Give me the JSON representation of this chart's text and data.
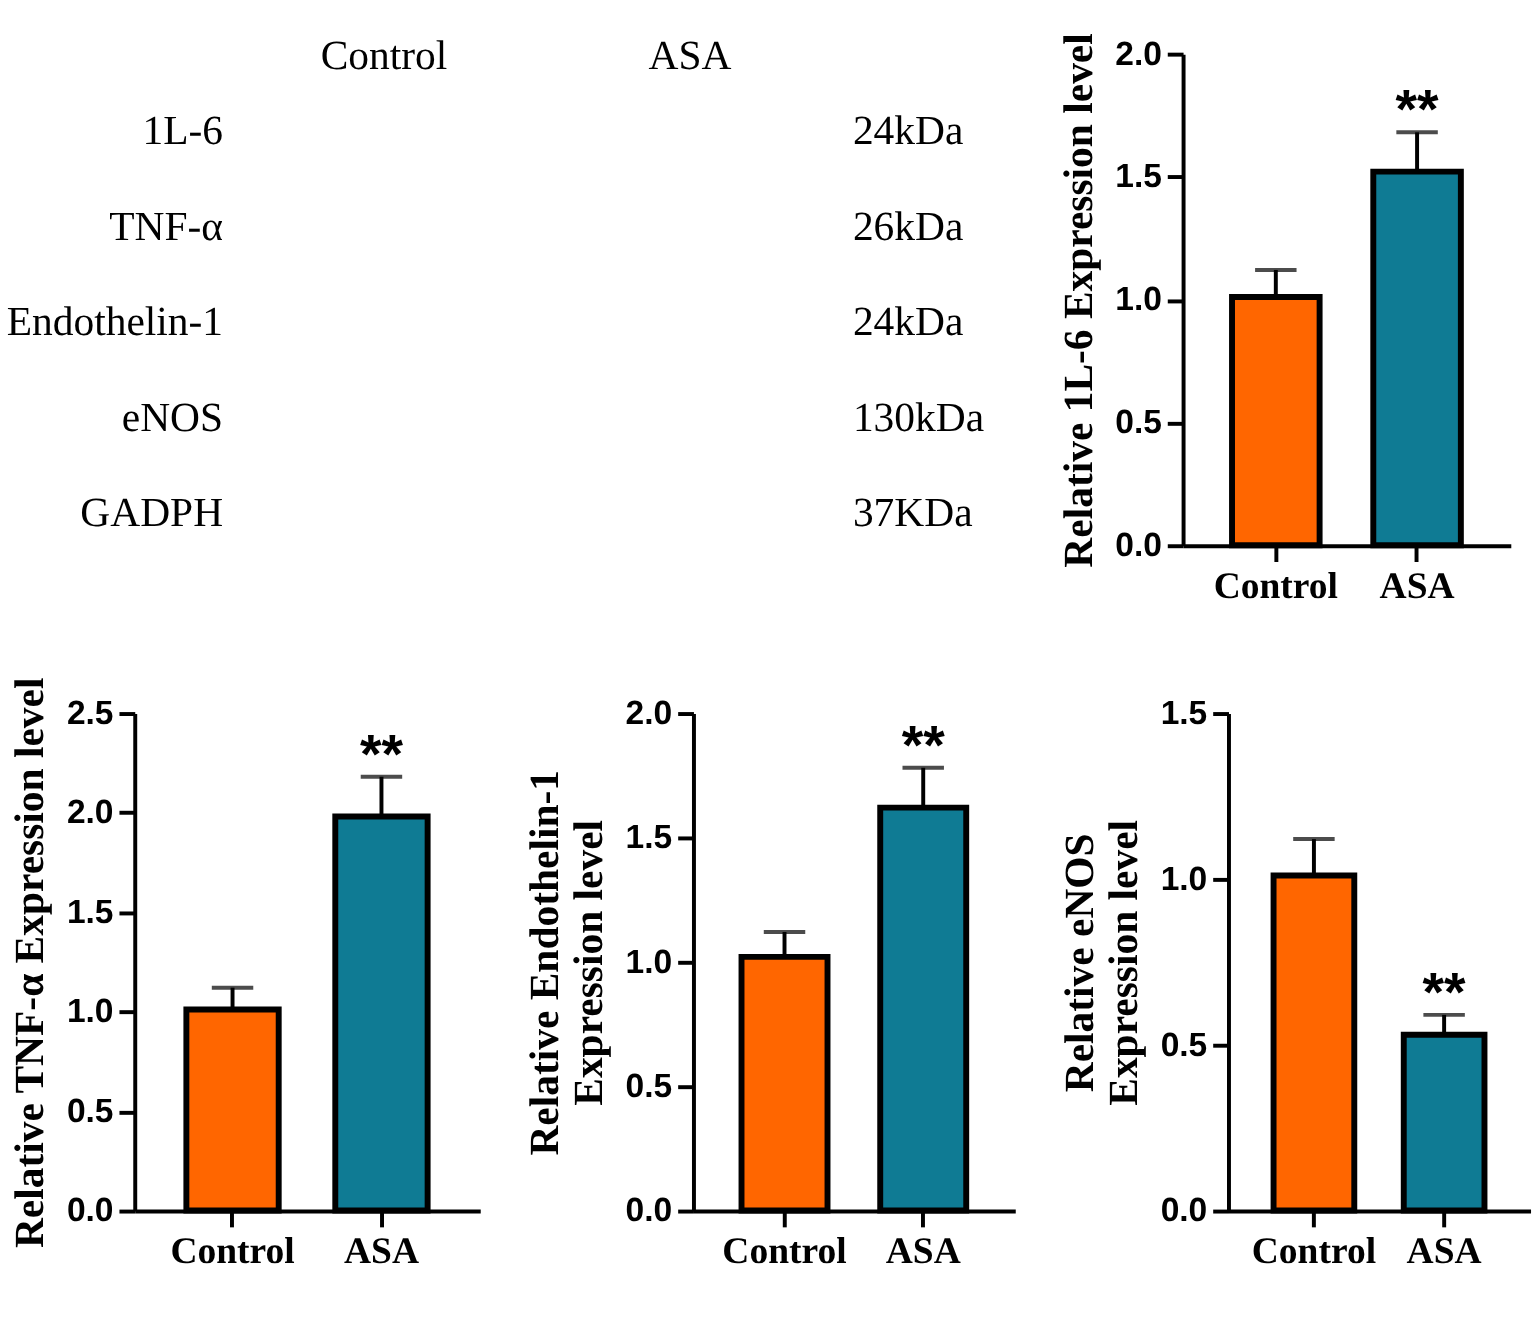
{
  "chart_data": [
    {
      "type": "other",
      "categories": [
        "Control",
        "ASA"
      ],
      "y_categories": [
        "1L-6",
        "TNF-α",
        "Endothelin-1",
        "eNOS",
        "GADPH"
      ],
      "y2_categories": [
        "24kDa",
        "26kDa",
        "24kDa",
        "130kDa",
        "37KDa"
      ]
    },
    {
      "type": "bar",
      "ylabel": "Relative 1L-6 Expression level",
      "categories": [
        "Control",
        "ASA"
      ],
      "values": [
        1.01,
        1.52
      ],
      "colors": [
        "#ff6600",
        "#0f7b94"
      ],
      "errors": [
        [
          1.01,
          1.12
        ],
        [
          1.52,
          1.68
        ]
      ],
      "ylim": [
        0,
        2
      ],
      "yticks": [
        {
          "value": 0,
          "label": "0.0"
        },
        0.5,
        {
          "value": 1,
          "label": "1.0"
        },
        1.5,
        {
          "value": 2,
          "label": "2.0"
        }
      ],
      "annotations": [
        {
          "text": "**",
          "x": "ASA",
          "y": 1.68
        }
      ]
    },
    {
      "type": "bar",
      "ylabel": "Relative TNF-α Expression level",
      "categories": [
        "Control",
        "ASA"
      ],
      "values": [
        1.01,
        1.98
      ],
      "colors": [
        "#ff6600",
        "#0f7b94"
      ],
      "errors": [
        [
          1.01,
          1.12
        ],
        [
          1.98,
          2.18
        ]
      ],
      "ylim": [
        0,
        2.5
      ],
      "yticks": [
        {
          "value": 0,
          "label": "0.0"
        },
        0.5,
        {
          "value": 1,
          "label": "1.0"
        },
        1.5,
        {
          "value": 2,
          "label": "2.0"
        },
        2.5
      ],
      "annotations": [
        {
          "text": "**",
          "x": "ASA",
          "y": 2.18
        }
      ]
    },
    {
      "type": "bar",
      "ylabel": "Relative Endothelin-1\nExpression level",
      "categories": [
        "Control",
        "ASA"
      ],
      "values": [
        1.02,
        1.62
      ],
      "colors": [
        "#ff6600",
        "#0f7b94"
      ],
      "errors": [
        [
          1.02,
          1.12
        ],
        [
          1.62,
          1.78
        ]
      ],
      "ylim": [
        0,
        2
      ],
      "yticks": [
        {
          "value": 0,
          "label": "0.0"
        },
        0.5,
        {
          "value": 1,
          "label": "1.0"
        },
        1.5,
        {
          "value": 2,
          "label": "2.0"
        }
      ],
      "annotations": [
        {
          "text": "**",
          "x": "ASA",
          "y": 1.78
        }
      ]
    },
    {
      "type": "bar",
      "ylabel": "Relative eNOS\nExpression level",
      "categories": [
        "Control",
        "ASA"
      ],
      "values": [
        1.01,
        0.53
      ],
      "colors": [
        "#ff6600",
        "#0f7b94"
      ],
      "errors": [
        [
          1.01,
          1.12
        ],
        [
          0.53,
          0.59
        ]
      ],
      "ylim": [
        0,
        1.5
      ],
      "yticks": [
        {
          "value": 0,
          "label": "0.0"
        },
        0.5,
        {
          "value": 1,
          "label": "1.0"
        },
        1.5
      ],
      "annotations": [
        {
          "text": "**",
          "x": "ASA",
          "y": 0.59
        }
      ]
    }
  ]
}
